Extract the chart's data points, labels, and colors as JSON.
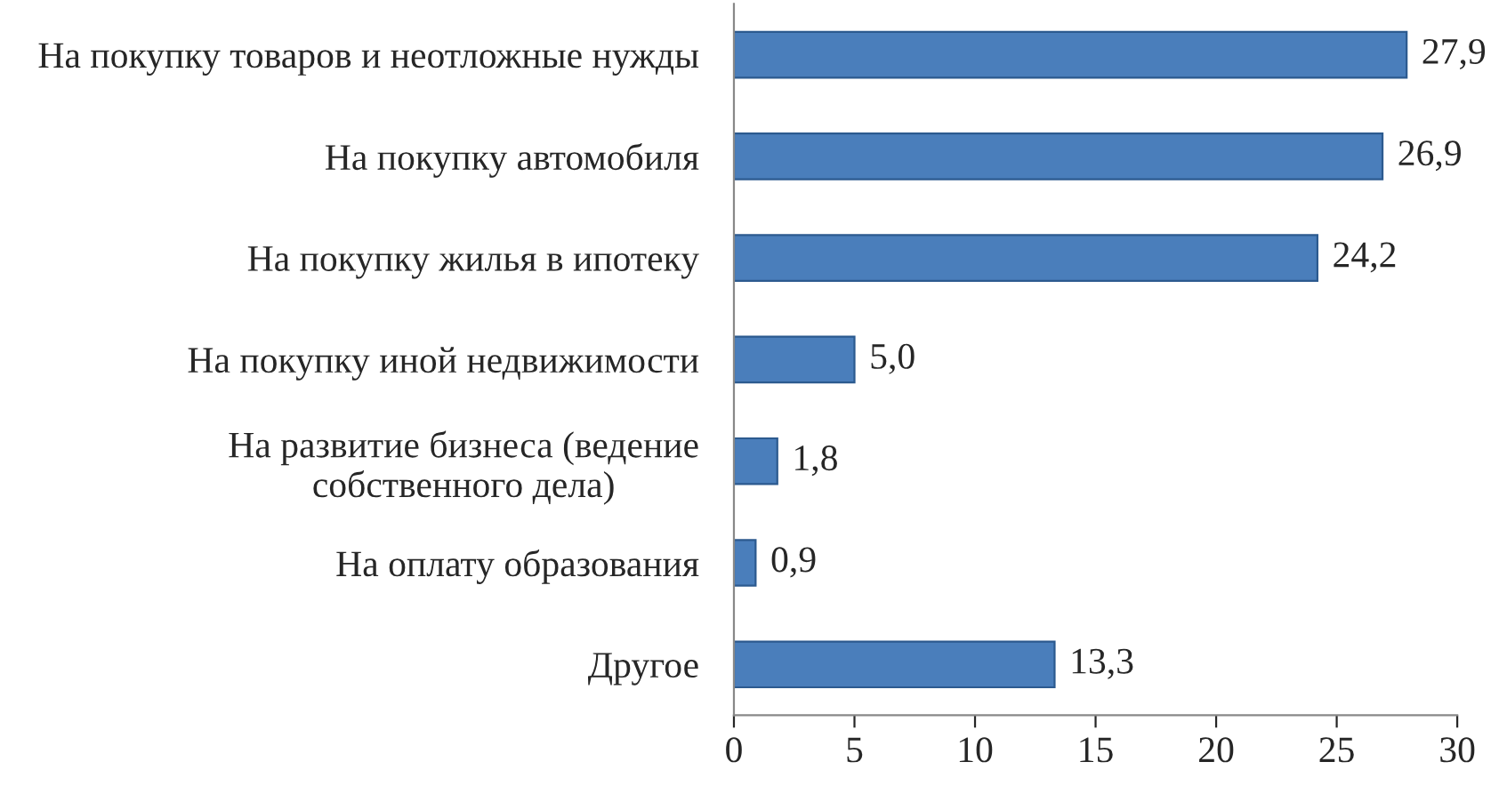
{
  "chart_data": {
    "type": "bar",
    "orientation": "horizontal",
    "categories": [
      "На покупку товаров и неотложные нужды",
      "На покупку автомобиля",
      "На покупку жилья в ипотеку",
      "На покупку иной недвижимости",
      "На развитие бизнеса (ведение\nсобственного дела)",
      "На оплату образования",
      "Другое"
    ],
    "values": [
      27.9,
      26.9,
      24.2,
      5.0,
      1.8,
      0.9,
      13.3
    ],
    "value_labels": [
      "27,9",
      "26,9",
      "24,2",
      "5,0",
      "1,8",
      "0,9",
      "13,3"
    ],
    "color": "#4a7ebb",
    "xlim": [
      0,
      30
    ],
    "xticks": [
      0,
      5,
      10,
      15,
      20,
      25,
      30
    ],
    "grid": false,
    "legend": false
  }
}
